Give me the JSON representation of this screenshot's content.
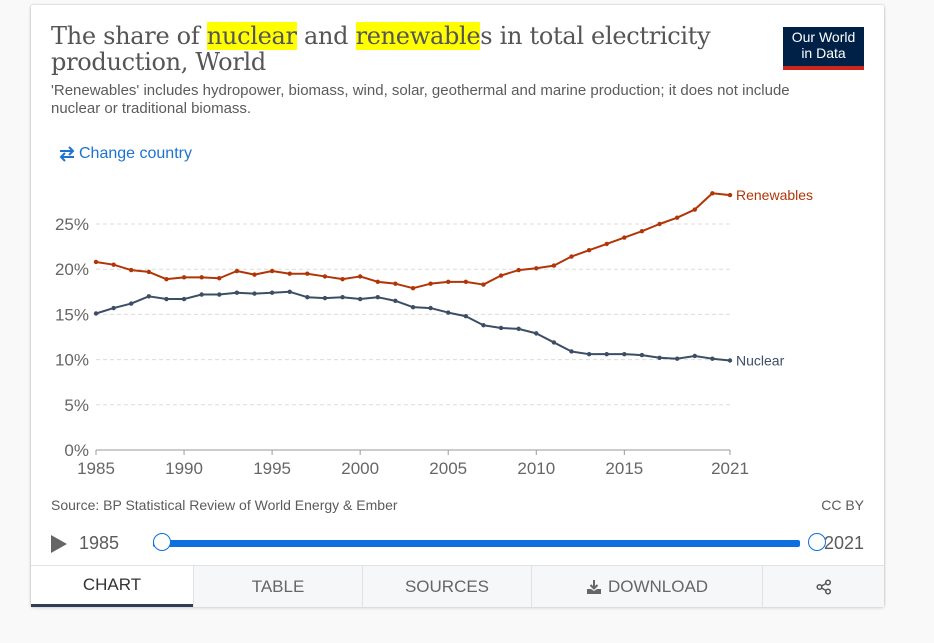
{
  "header": {
    "title_parts": [
      {
        "text": "The share of ",
        "highlight": false
      },
      {
        "text": "nuclear",
        "highlight": true
      },
      {
        "text": " and ",
        "highlight": false
      },
      {
        "text": "renewable",
        "highlight": true
      },
      {
        "text": "s in total electricity production, World",
        "highlight": false
      }
    ],
    "subtitle": "'Renewables' includes hydropower, biomass, wind, solar, geothermal and marine production; it does not include nuclear or traditional biomass.",
    "logo_line1": "Our World",
    "logo_line2": "in Data",
    "change_country_label": "Change country",
    "change_country_icon": "swap-arrows-icon"
  },
  "colors": {
    "renewables": "#b13507",
    "nuclear": "#3c4e66",
    "accent": "#1d73d1",
    "slider": "#0d6fe0",
    "logo_bg": "#002147",
    "logo_bar": "#ce261e",
    "highlight": "#ffff00"
  },
  "chart_data": {
    "type": "line",
    "title": "The share of nuclear and renewables in total electricity production, World",
    "xlabel": "",
    "ylabel": "",
    "xlim": [
      1985,
      2021
    ],
    "ylim": [
      0,
      27
    ],
    "x_ticks": [
      "1985",
      "1990",
      "1995",
      "2000",
      "2005",
      "2010",
      "2015",
      "2021"
    ],
    "x_tick_values": [
      1985,
      1990,
      1995,
      2000,
      2005,
      2010,
      2015,
      2021
    ],
    "y_ticks": [
      "0%",
      "5%",
      "10%",
      "15%",
      "20%",
      "25%"
    ],
    "y_tick_values": [
      0,
      5,
      10,
      15,
      20,
      25
    ],
    "grid": "horizontal dashed",
    "legend": "inline labels at line ends (right)",
    "x": [
      1985,
      1986,
      1987,
      1988,
      1989,
      1990,
      1991,
      1992,
      1993,
      1994,
      1995,
      1996,
      1997,
      1998,
      1999,
      2000,
      2001,
      2002,
      2003,
      2004,
      2005,
      2006,
      2007,
      2008,
      2009,
      2010,
      2011,
      2012,
      2013,
      2014,
      2015,
      2016,
      2017,
      2018,
      2019,
      2020,
      2021
    ],
    "series": [
      {
        "name": "Renewables",
        "values": [
          20.8,
          20.5,
          19.9,
          19.7,
          18.9,
          19.1,
          19.1,
          19.0,
          19.8,
          19.4,
          19.8,
          19.5,
          19.5,
          19.2,
          18.9,
          19.2,
          18.6,
          18.4,
          17.9,
          18.4,
          18.6,
          18.6,
          18.3,
          19.3,
          19.9,
          20.1,
          20.4,
          21.4,
          22.1,
          22.8,
          23.5,
          24.2,
          25.0,
          25.7,
          26.6,
          28.4,
          28.2
        ]
      },
      {
        "name": "Nuclear",
        "values": [
          15.1,
          15.7,
          16.2,
          17.0,
          16.7,
          16.7,
          17.2,
          17.2,
          17.4,
          17.3,
          17.4,
          17.5,
          16.9,
          16.8,
          16.9,
          16.7,
          16.9,
          16.5,
          15.8,
          15.7,
          15.2,
          14.8,
          13.8,
          13.5,
          13.4,
          12.9,
          11.9,
          10.9,
          10.6,
          10.6,
          10.6,
          10.5,
          10.2,
          10.1,
          10.4,
          10.1,
          9.9
        ]
      }
    ]
  },
  "footer": {
    "source": "Source: BP Statistical Review of World Energy & Ember",
    "license": "CC BY"
  },
  "timeline": {
    "start_year": "1985",
    "end_year": "2021",
    "play_icon": "play-icon"
  },
  "tabs": [
    {
      "label": "CHART",
      "active": true
    },
    {
      "label": "TABLE",
      "active": false
    },
    {
      "label": "SOURCES",
      "active": false
    },
    {
      "label": "DOWNLOAD",
      "active": false,
      "icon": "download-icon"
    },
    {
      "label": "",
      "active": false,
      "icon": "share-icon"
    }
  ]
}
